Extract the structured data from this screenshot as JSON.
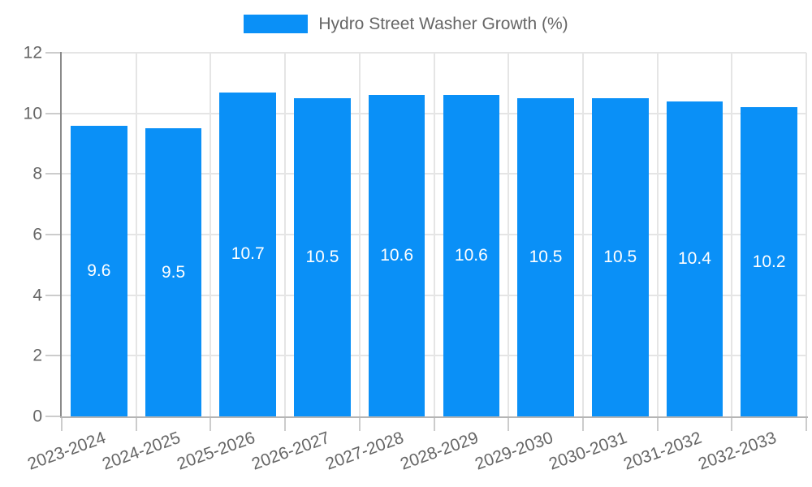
{
  "chart_data": {
    "type": "bar",
    "categories": [
      "2023-2024",
      "2024-2025",
      "2025-2026",
      "2026-2027",
      "2027-2028",
      "2028-2029",
      "2029-2030",
      "2030-2031",
      "2031-2032",
      "2032-2033"
    ],
    "values": [
      9.6,
      9.5,
      10.7,
      10.5,
      10.6,
      10.6,
      10.5,
      10.5,
      10.4,
      10.2
    ],
    "value_labels": [
      "9.6",
      "9.5",
      "10.7",
      "10.5",
      "10.6",
      "10.6",
      "10.5",
      "10.5",
      "10.4",
      "10.2"
    ],
    "legend": [
      "Hydro Street Washer Growth (%)"
    ],
    "legend_position": "top-center",
    "title": "",
    "xlabel": "",
    "ylabel": "",
    "ylim": [
      0,
      12
    ],
    "yticks": [
      0,
      2,
      4,
      6,
      8,
      10,
      12
    ],
    "ytick_labels": [
      "0",
      "2",
      "4",
      "6",
      "8",
      "10",
      "12"
    ],
    "grid": true,
    "x_label_rotation_deg": -20,
    "colors": {
      "bar": "#0a90f7",
      "bar_label": "#ffffff",
      "grid": "#e5e5e5",
      "y_axis": "#8a8a8a",
      "x_axis": "#b5b5b5",
      "tick_mark": "#cccccc",
      "tick_text": "#666666",
      "legend_text": "#666666",
      "background": "#ffffff"
    }
  }
}
